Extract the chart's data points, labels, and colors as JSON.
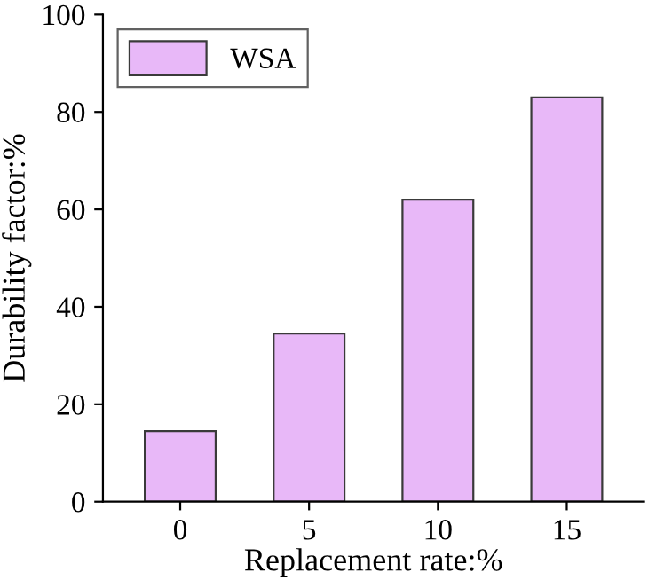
{
  "chart_data": {
    "type": "bar",
    "xlabel": "Replacement rate:%",
    "ylabel": "Durability factor:%",
    "categories": [
      "0",
      "5",
      "10",
      "15"
    ],
    "series": [
      {
        "name": "WSA",
        "color": "#e8b8f8",
        "values": [
          14.5,
          34.5,
          62,
          83
        ]
      }
    ],
    "ylim": [
      0,
      100
    ],
    "yticks": [
      0,
      20,
      40,
      60,
      80,
      100
    ],
    "grid": false,
    "legend": "top left"
  }
}
